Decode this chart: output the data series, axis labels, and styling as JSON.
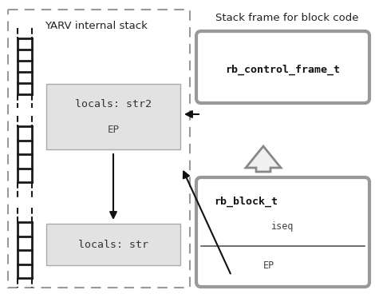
{
  "title_left": "YARV internal stack",
  "title_right": "Stack frame for block code",
  "rb_control_label": "rb_control_frame_t",
  "rb_block_label": "rb_block_t",
  "rb_block_sub1": "iseq",
  "rb_block_sub2": "EP",
  "background": "#ffffff",
  "box_fill": "#e2e2e2",
  "box_stroke": "#aaaaaa",
  "rb_box_stroke": "#999999",
  "dashed_border_color": "#999999",
  "arrow_color": "#111111",
  "ladder_color": "#1a1a1a",
  "up_arrow_fill": "#f0f0f0",
  "up_arrow_stroke": "#888888"
}
